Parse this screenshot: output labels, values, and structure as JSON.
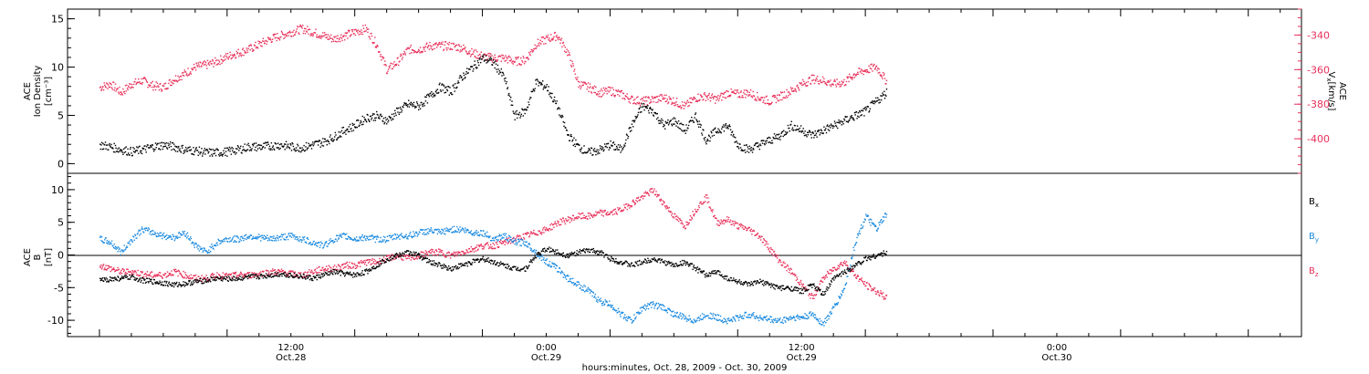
{
  "chart_data": [
    {
      "type": "scatter",
      "panel": "top",
      "ylabel_left": [
        "ACE",
        "Ion Density",
        "[cm⁻³]"
      ],
      "ylabel_right": [
        "ACE",
        "V",
        "x",
        "[km/s]"
      ],
      "ylim_left": [
        -1,
        16
      ],
      "yticks_left": [
        "0",
        "5",
        "10",
        "15"
      ],
      "ylim_right": [
        -420,
        -325
      ],
      "yticks_right": [
        "-400",
        "-380",
        "-360",
        "-340"
      ],
      "series": [
        {
          "color": "#000000",
          "axis": "left",
          "x": [
            0,
            1,
            2,
            3,
            4,
            5,
            6,
            7,
            8,
            9,
            10,
            11,
            12,
            13,
            14,
            15,
            16,
            17,
            18,
            19,
            20,
            21,
            22,
            23,
            24,
            25,
            26,
            27,
            28,
            29,
            30,
            31,
            32,
            33,
            34,
            35,
            36,
            37,
            38,
            39,
            40,
            41,
            42,
            43,
            44,
            45,
            46,
            47,
            48,
            49,
            50,
            51,
            52,
            53,
            54,
            55,
            56,
            57,
            58,
            59,
            60,
            61,
            62,
            63,
            64,
            65,
            66,
            67,
            68,
            69,
            70,
            71,
            72,
            73,
            74
          ],
          "values": [
            2,
            1.8,
            1.5,
            1.3,
            1.5,
            1.8,
            2.0,
            1.8,
            1.5,
            1.4,
            1.2,
            1.2,
            1.3,
            1.5,
            1.8,
            1.8,
            1.9,
            2.0,
            1.8,
            1.7,
            2.0,
            2.3,
            2.8,
            3.5,
            4.0,
            4.8,
            5.0,
            4.5,
            5.5,
            6.2,
            6.0,
            7.0,
            8.0,
            7.5,
            9.0,
            10.0,
            11.0,
            10.5,
            9.0,
            5.0,
            5.5,
            8.5,
            8.0,
            6.0,
            3.0,
            1.8,
            1.2,
            1.5,
            2.0,
            1.5,
            4.0,
            6.0,
            5.5,
            4.0,
            4.5,
            3.5,
            5.0,
            2.5,
            3.5,
            4.0,
            2.0,
            1.5,
            2.0,
            2.5,
            3.0,
            4.0,
            3.5,
            3.0,
            3.5,
            4.0,
            4.5,
            5.0,
            5.5,
            6.5,
            7.5
          ]
        },
        {
          "color": "#e8305a",
          "axis": "right",
          "x": [
            0,
            1,
            2,
            3,
            4,
            5,
            6,
            7,
            8,
            9,
            10,
            11,
            12,
            13,
            14,
            15,
            16,
            17,
            18,
            19,
            20,
            21,
            22,
            23,
            24,
            25,
            26,
            27,
            28,
            29,
            30,
            31,
            32,
            33,
            34,
            35,
            36,
            37,
            38,
            39,
            40,
            41,
            42,
            43,
            44,
            45,
            46,
            47,
            48,
            49,
            50,
            51,
            52,
            53,
            54,
            55,
            56,
            57,
            58,
            59,
            60,
            61,
            62,
            63,
            64,
            65,
            66,
            67,
            68,
            69,
            70,
            71,
            72,
            73,
            74
          ],
          "values": [
            -370,
            -368,
            -373,
            -368,
            -366,
            -369,
            -370,
            -365,
            -362,
            -358,
            -357,
            -355,
            -352,
            -350,
            -348,
            -345,
            -342,
            -340,
            -338,
            -336,
            -338,
            -340,
            -342,
            -340,
            -338,
            -336,
            -345,
            -360,
            -355,
            -348,
            -348,
            -346,
            -346,
            -346,
            -347,
            -350,
            -352,
            -353,
            -353,
            -355,
            -354,
            -345,
            -342,
            -340,
            -350,
            -368,
            -370,
            -373,
            -372,
            -374,
            -377,
            -378,
            -377,
            -376,
            -378,
            -381,
            -376,
            -375,
            -377,
            -373,
            -374,
            -373,
            -376,
            -378,
            -375,
            -372,
            -368,
            -365,
            -366,
            -368,
            -367,
            -362,
            -360,
            -358,
            -367
          ]
        }
      ]
    },
    {
      "type": "scatter",
      "panel": "bottom",
      "ylabel_left": [
        "ACE",
        "B",
        "[nT]"
      ],
      "ylim": [
        -12.5,
        12.5
      ],
      "yticks": [
        "-10",
        "-5",
        "0",
        "5",
        "10"
      ],
      "legend_position": "right",
      "legend": [
        {
          "name": "B",
          "sub": "x",
          "color": "#000000"
        },
        {
          "name": "B",
          "sub": "y",
          "color": "#1a8ae0"
        },
        {
          "name": "B",
          "sub": "z",
          "color": "#e8305a"
        }
      ],
      "series": [
        {
          "name": "Bx",
          "color": "#000000",
          "x": [
            0,
            1,
            2,
            3,
            4,
            5,
            6,
            7,
            8,
            9,
            10,
            11,
            12,
            13,
            14,
            15,
            16,
            17,
            18,
            19,
            20,
            21,
            22,
            23,
            24,
            25,
            26,
            27,
            28,
            29,
            30,
            31,
            32,
            33,
            34,
            35,
            36,
            37,
            38,
            39,
            40,
            41,
            42,
            43,
            44,
            45,
            46,
            47,
            48,
            49,
            50,
            51,
            52,
            53,
            54,
            55,
            56,
            57,
            58,
            59,
            60,
            61,
            62,
            63,
            64,
            65,
            66,
            67,
            68,
            69,
            70,
            71,
            72,
            73,
            74
          ],
          "values": [
            -3.8,
            -3.6,
            -3.5,
            -3.3,
            -3.8,
            -4.0,
            -4.2,
            -4.5,
            -4.3,
            -4.0,
            -3.8,
            -3.5,
            -3.6,
            -3.5,
            -3.3,
            -3.2,
            -3.0,
            -2.8,
            -3.0,
            -3.2,
            -3.5,
            -3.0,
            -2.5,
            -2.8,
            -3.0,
            -2.5,
            -1.5,
            -0.5,
            0,
            0.5,
            0,
            -1.0,
            -1.5,
            -2.0,
            -1.5,
            -1.0,
            -0.5,
            -1.0,
            -1.5,
            -2.0,
            -2.0,
            0,
            1.0,
            0.5,
            0,
            0.5,
            0.8,
            0.5,
            -0.5,
            -1.0,
            -1.5,
            -1.0,
            -0.5,
            -1.0,
            -1.5,
            -1.0,
            -2.0,
            -3.0,
            -2.5,
            -3.5,
            -4.0,
            -4.5,
            -4.0,
            -4.5,
            -5.0,
            -5.0,
            -5.5,
            -4.5,
            -6.0,
            -3.5,
            -2.5,
            -1.5,
            -0.5,
            0,
            0.5
          ]
        },
        {
          "name": "By",
          "color": "#1a8ae0",
          "x": [
            0,
            1,
            2,
            3,
            4,
            5,
            6,
            7,
            8,
            9,
            10,
            11,
            12,
            13,
            14,
            15,
            16,
            17,
            18,
            19,
            20,
            21,
            22,
            23,
            24,
            25,
            26,
            27,
            28,
            29,
            30,
            31,
            32,
            33,
            34,
            35,
            36,
            37,
            38,
            39,
            40,
            41,
            42,
            43,
            44,
            45,
            46,
            47,
            48,
            49,
            50,
            51,
            52,
            53,
            54,
            55,
            56,
            57,
            58,
            59,
            60,
            61,
            62,
            63,
            64,
            65,
            66,
            67,
            68,
            69,
            70,
            71,
            72,
            73,
            74
          ],
          "values": [
            2.5,
            2.0,
            0.5,
            2.5,
            4.0,
            3.5,
            3.0,
            2.8,
            3.5,
            1.5,
            0.5,
            2.0,
            2.5,
            2.5,
            3.0,
            2.8,
            2.5,
            2.8,
            3.0,
            2.5,
            2.0,
            1.5,
            2.5,
            3.0,
            2.5,
            2.8,
            2.5,
            2.5,
            3.0,
            3.0,
            3.5,
            3.8,
            3.5,
            4.0,
            4.0,
            3.5,
            3.5,
            2.5,
            3.0,
            2.0,
            2.0,
            0.5,
            -1.0,
            -2.0,
            -3.5,
            -4.5,
            -5.5,
            -7.0,
            -7.5,
            -9.0,
            -10.0,
            -8.0,
            -7.5,
            -8.0,
            -9.0,
            -9.5,
            -10.0,
            -9.0,
            -9.5,
            -10.0,
            -9.5,
            -9.0,
            -9.5,
            -9.8,
            -10.0,
            -9.5,
            -9.5,
            -9.0,
            -10.5,
            -8.0,
            -5.0,
            2.0,
            6.0,
            4.0,
            6.5
          ]
        },
        {
          "name": "Bz",
          "color": "#e8305a",
          "x": [
            0,
            1,
            2,
            3,
            4,
            5,
            6,
            7,
            8,
            9,
            10,
            11,
            12,
            13,
            14,
            15,
            16,
            17,
            18,
            19,
            20,
            21,
            22,
            23,
            24,
            25,
            26,
            27,
            28,
            29,
            30,
            31,
            32,
            33,
            34,
            35,
            36,
            37,
            38,
            39,
            40,
            41,
            42,
            43,
            44,
            45,
            46,
            47,
            48,
            49,
            50,
            51,
            52,
            53,
            54,
            55,
            56,
            57,
            58,
            59,
            60,
            61,
            62,
            63,
            64,
            65,
            66,
            67,
            68,
            69,
            70,
            71,
            72,
            73,
            74
          ],
          "values": [
            -1.5,
            -2.0,
            -2.5,
            -2.5,
            -2.8,
            -3.0,
            -3.0,
            -2.5,
            -3.0,
            -3.5,
            -3.5,
            -3.0,
            -3.2,
            -3.0,
            -3.0,
            -2.8,
            -2.5,
            -2.5,
            -2.8,
            -3.0,
            -2.5,
            -2.0,
            -2.0,
            -1.5,
            -1.5,
            -1.0,
            -1.0,
            -0.5,
            0,
            -0.5,
            0,
            0.5,
            0.5,
            0,
            0.5,
            1.0,
            1.5,
            1.5,
            2.0,
            2.5,
            3.0,
            3.5,
            4.0,
            5.0,
            5.5,
            6.0,
            6.0,
            6.5,
            6.5,
            7.0,
            8.0,
            9.0,
            10.0,
            8.0,
            6.0,
            4.5,
            7.0,
            9.0,
            5.0,
            5.5,
            4.5,
            4.0,
            3.0,
            1.0,
            -1.0,
            -2.5,
            -4.5,
            -6.5,
            -3.5,
            -2.0,
            -1.0,
            -3.0,
            -4.5,
            -5.5,
            -6.5
          ]
        }
      ]
    }
  ],
  "xaxis": {
    "title": "hours:minutes, Oct. 28, 2009 - Oct. 30, 2009",
    "ticks": [
      {
        "x": 18,
        "time": "12:00",
        "date": "Oct.28"
      },
      {
        "x": 42,
        "time": "0:00",
        "date": "Oct.29"
      },
      {
        "x": 66,
        "time": "12:00",
        "date": "Oct.29"
      },
      {
        "x": 90,
        "time": "0:00",
        "date": "Oct.30"
      }
    ]
  }
}
